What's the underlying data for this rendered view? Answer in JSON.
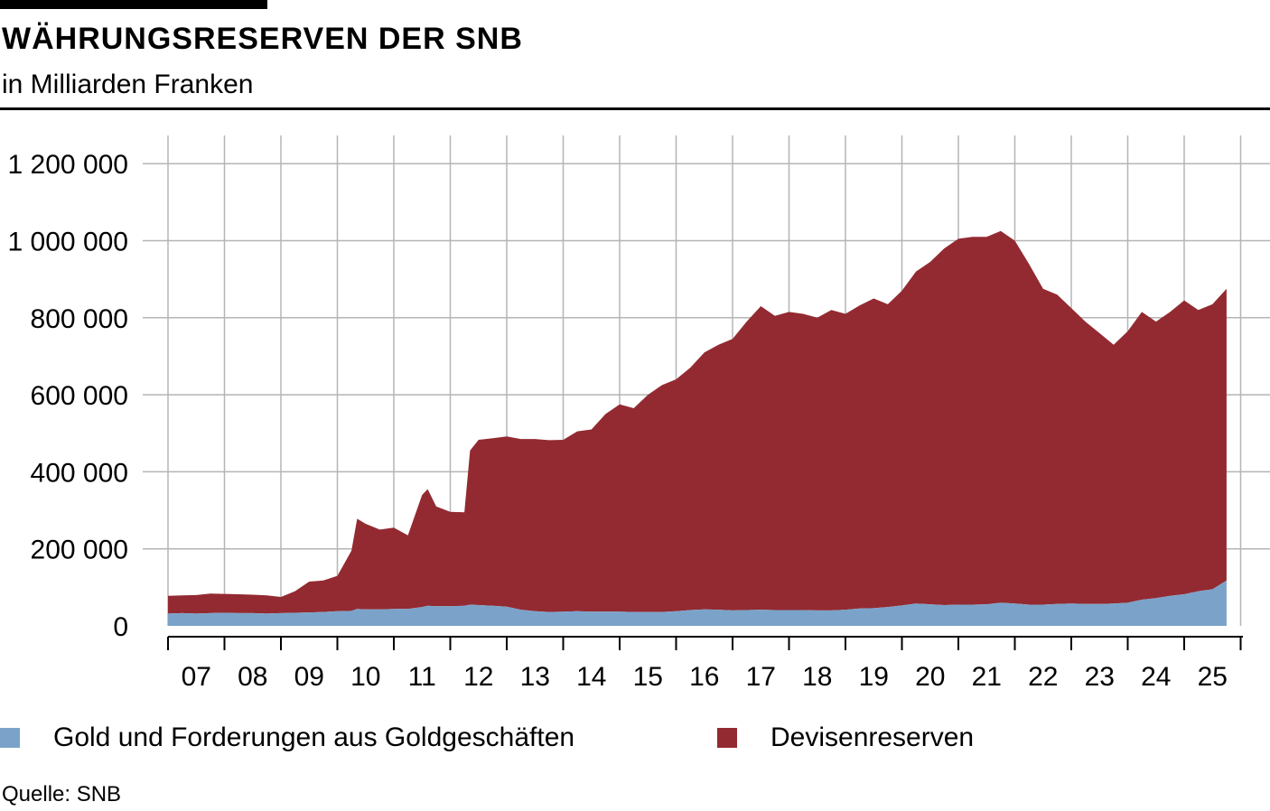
{
  "header": {
    "title": "WÄHRUNGSRESERVEN DER SNB",
    "subtitle": "in Milliarden Franken"
  },
  "footer": {
    "source": "Quelle: SNB"
  },
  "chart_data": {
    "type": "area",
    "stacked": true,
    "title": "WÄHRUNGSRESERVEN DER SNB",
    "subtitle": "in Milliarden Franken",
    "source": "Quelle: SNB",
    "xlabel": "",
    "ylabel": "",
    "xlim": [
      2006.9,
      2025.85
    ],
    "ylim": [
      0,
      1270000
    ],
    "y_ticks": [
      0,
      200000,
      400000,
      600000,
      800000,
      1000000,
      1200000
    ],
    "y_tick_labels": [
      "0",
      "200 000",
      "400 000",
      "600 000",
      "800 000",
      "1 000 000",
      "1 200 000"
    ],
    "x_tick_labels": [
      "07",
      "08",
      "09",
      "10",
      "11",
      "12",
      "13",
      "14",
      "15",
      "16",
      "17",
      "18",
      "19",
      "20",
      "21",
      "22",
      "23",
      "24",
      "25"
    ],
    "grid": {
      "vertical": true,
      "horizontal": true
    },
    "legend_position": "bottom",
    "colors": {
      "gold": "#7ba3c9",
      "devisen": "#932a31",
      "grid": "#b5b5b5",
      "axis": "#000000"
    },
    "legend": [
      {
        "label": "Gold und Forderungen aus Goldgeschäften",
        "color": "#7ba3c9"
      },
      {
        "label": "Devisenreserven",
        "color": "#932a31"
      }
    ],
    "x": [
      2007.0,
      2007.25,
      2007.5,
      2007.75,
      2008.0,
      2008.25,
      2008.5,
      2008.75,
      2009.0,
      2009.25,
      2009.5,
      2009.75,
      2010.0,
      2010.25,
      2010.35,
      2010.5,
      2010.75,
      2011.0,
      2011.25,
      2011.5,
      2011.6,
      2011.75,
      2012.0,
      2012.25,
      2012.35,
      2012.5,
      2012.75,
      2013.0,
      2013.25,
      2013.5,
      2013.75,
      2014.0,
      2014.25,
      2014.5,
      2014.75,
      2015.0,
      2015.25,
      2015.5,
      2015.75,
      2016.0,
      2016.25,
      2016.5,
      2016.75,
      2017.0,
      2017.25,
      2017.5,
      2017.75,
      2018.0,
      2018.25,
      2018.5,
      2018.75,
      2019.0,
      2019.25,
      2019.5,
      2019.75,
      2020.0,
      2020.25,
      2020.5,
      2020.75,
      2021.0,
      2021.25,
      2021.5,
      2021.75,
      2022.0,
      2022.25,
      2022.5,
      2022.75,
      2023.0,
      2023.25,
      2023.5,
      2023.75,
      2024.0,
      2024.25,
      2024.5,
      2024.75,
      2025.0,
      2025.25,
      2025.5,
      2025.75
    ],
    "total": [
      78000,
      79000,
      80000,
      84000,
      83000,
      82000,
      81000,
      79000,
      75000,
      90000,
      115000,
      118000,
      130000,
      195000,
      278000,
      265000,
      250000,
      255000,
      235000,
      340000,
      355000,
      310000,
      296000,
      295000,
      455000,
      483000,
      487000,
      492000,
      485000,
      485000,
      482000,
      483000,
      505000,
      510000,
      550000,
      575000,
      565000,
      600000,
      625000,
      640000,
      670000,
      710000,
      730000,
      745000,
      790000,
      830000,
      805000,
      815000,
      810000,
      800000,
      820000,
      810000,
      832000,
      850000,
      835000,
      870000,
      920000,
      945000,
      980000,
      1005000,
      1010000,
      1010000,
      1025000,
      1000000,
      940000,
      875000,
      860000,
      825000,
      790000,
      760000,
      730000,
      765000,
      815000,
      790000,
      815000,
      845000,
      820000,
      835000,
      875000
    ],
    "series": [
      {
        "name": "Gold und Forderungen aus Goldgeschäften",
        "values": [
          32000,
          33000,
          32000,
          33000,
          34000,
          33000,
          33000,
          32000,
          33000,
          34000,
          35000,
          36000,
          38000,
          39000,
          44000,
          43000,
          43000,
          44000,
          44000,
          49000,
          52000,
          51000,
          51000,
          52000,
          55000,
          54000,
          52000,
          50000,
          42000,
          38000,
          36000,
          37000,
          38000,
          37000,
          37000,
          37000,
          36000,
          36000,
          36000,
          38000,
          41000,
          43000,
          42000,
          40000,
          41000,
          42000,
          41000,
          41000,
          41000,
          40000,
          40000,
          42000,
          45000,
          46000,
          49000,
          53000,
          58000,
          56000,
          54000,
          55000,
          55000,
          56000,
          60000,
          58000,
          55000,
          55000,
          57000,
          58000,
          57000,
          57000,
          58000,
          60000,
          68000,
          72000,
          78000,
          82000,
          90000,
          95000,
          118000
        ]
      },
      {
        "name": "Devisenreserven",
        "values": [
          46000,
          46000,
          48000,
          51000,
          49000,
          49000,
          48000,
          47000,
          42000,
          56000,
          80000,
          82000,
          92000,
          156000,
          234000,
          222000,
          207000,
          211000,
          191000,
          291000,
          303000,
          259000,
          245000,
          243000,
          400000,
          429000,
          435000,
          442000,
          443000,
          447000,
          446000,
          446000,
          467000,
          473000,
          513000,
          538000,
          529000,
          564000,
          589000,
          602000,
          629000,
          667000,
          688000,
          705000,
          749000,
          788000,
          764000,
          774000,
          769000,
          760000,
          780000,
          768000,
          787000,
          804000,
          786000,
          817000,
          862000,
          889000,
          926000,
          950000,
          955000,
          954000,
          965000,
          942000,
          885000,
          820000,
          803000,
          767000,
          733000,
          703000,
          672000,
          705000,
          747000,
          718000,
          737000,
          763000,
          730000,
          740000,
          757000
        ]
      }
    ]
  }
}
